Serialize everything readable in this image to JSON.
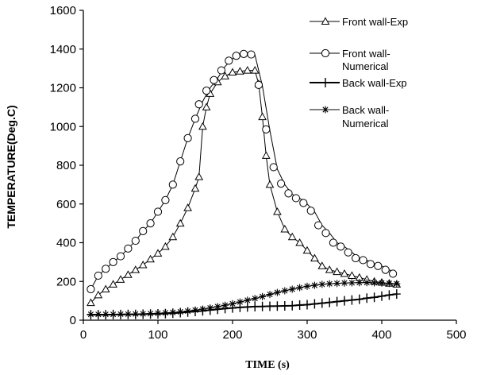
{
  "chart_data": {
    "type": "line",
    "xlabel": "TIME (s)",
    "ylabel": "TEMPERATURE(Deg.C)",
    "xlim": [
      0,
      500
    ],
    "ylim": [
      0,
      1600
    ],
    "xticks": [
      "0",
      "100",
      "200",
      "300",
      "400",
      "500"
    ],
    "yticks": [
      "0",
      "200",
      "400",
      "600",
      "800",
      "1000",
      "1200",
      "1400",
      "1600"
    ],
    "grid": false,
    "legend_position": "top-right",
    "series": [
      {
        "name": "Front wall-Exp",
        "marker": "triangle",
        "line_width": 1,
        "x": [
          10,
          20,
          30,
          40,
          50,
          60,
          70,
          80,
          90,
          100,
          110,
          120,
          130,
          140,
          150,
          155,
          160,
          165,
          170,
          180,
          190,
          200,
          210,
          220,
          230,
          235,
          240,
          245,
          250,
          260,
          270,
          280,
          290,
          300,
          310,
          320,
          330,
          340,
          350,
          360,
          370,
          380,
          390,
          400,
          410,
          420
        ],
        "y": [
          90,
          130,
          160,
          185,
          210,
          235,
          260,
          285,
          315,
          345,
          380,
          430,
          500,
          580,
          680,
          740,
          1000,
          1100,
          1170,
          1230,
          1260,
          1280,
          1285,
          1290,
          1290,
          1220,
          1050,
          850,
          700,
          560,
          470,
          430,
          400,
          360,
          320,
          280,
          260,
          250,
          240,
          230,
          220,
          210,
          200,
          195,
          190,
          185
        ]
      },
      {
        "name": "Front wall-Numerical",
        "marker": "circle",
        "line_width": 1,
        "x": [
          10,
          20,
          30,
          40,
          50,
          60,
          70,
          80,
          90,
          100,
          110,
          120,
          130,
          140,
          150,
          160,
          170,
          180,
          190,
          200,
          210,
          220,
          230,
          240,
          250,
          260,
          270,
          280,
          290,
          300,
          310,
          320,
          330,
          340,
          350,
          360,
          370,
          380,
          390,
          400,
          410,
          420
        ],
        "y": [
          160,
          230,
          265,
          300,
          330,
          370,
          410,
          460,
          500,
          560,
          620,
          700,
          820,
          940,
          1040,
          1130,
          1200,
          1250,
          1310,
          1350,
          1370,
          1375,
          1370,
          1210,
          980,
          780,
          700,
          650,
          630,
          600,
          560,
          490,
          450,
          400,
          380,
          350,
          320,
          310,
          290,
          280,
          260,
          240
        ],
        "point_x": [
          10,
          20,
          30,
          40,
          50,
          60,
          70,
          80,
          90,
          100,
          110,
          120,
          130,
          140,
          150,
          155,
          165,
          175,
          185,
          195,
          205,
          215,
          225,
          235,
          245,
          255,
          265,
          275,
          285,
          295,
          305,
          315,
          325,
          335,
          345,
          355,
          365,
          375,
          385,
          395,
          405,
          415
        ],
        "point_y": [
          160,
          230,
          265,
          300,
          330,
          370,
          410,
          460,
          500,
          560,
          620,
          700,
          820,
          940,
          1040,
          1115,
          1185,
          1240,
          1290,
          1340,
          1365,
          1375,
          1372,
          1215,
          985,
          790,
          705,
          655,
          630,
          605,
          565,
          490,
          450,
          400,
          380,
          350,
          320,
          310,
          290,
          280,
          260,
          240
        ]
      },
      {
        "name": "Back wall-Exp",
        "marker": "plus",
        "line_width": 2,
        "x": [
          10,
          20,
          30,
          40,
          50,
          60,
          70,
          80,
          90,
          100,
          110,
          120,
          130,
          140,
          150,
          160,
          170,
          180,
          190,
          200,
          210,
          220,
          230,
          240,
          250,
          260,
          270,
          280,
          290,
          300,
          310,
          320,
          330,
          340,
          350,
          360,
          370,
          380,
          390,
          400,
          410,
          420
        ],
        "y": [
          28,
          28,
          28,
          29,
          29,
          30,
          30,
          31,
          32,
          33,
          34,
          36,
          39,
          42,
          45,
          48,
          52,
          56,
          60,
          63,
          66,
          68,
          70,
          71,
          72,
          73,
          74,
          75,
          78,
          80,
          84,
          88,
          92,
          96,
          100,
          104,
          108,
          114,
          118,
          124,
          130,
          135
        ]
      },
      {
        "name": "Back wall-Numerical",
        "marker": "asterisk",
        "line_width": 1,
        "x": [
          10,
          20,
          30,
          40,
          50,
          60,
          70,
          80,
          90,
          100,
          110,
          120,
          130,
          140,
          150,
          160,
          170,
          180,
          190,
          200,
          210,
          220,
          230,
          240,
          250,
          260,
          270,
          280,
          290,
          300,
          310,
          320,
          330,
          340,
          350,
          360,
          370,
          380,
          390,
          400,
          410,
          420
        ],
        "y": [
          30,
          30,
          30,
          30,
          31,
          31,
          32,
          33,
          34,
          36,
          38,
          40,
          43,
          47,
          52,
          57,
          63,
          70,
          77,
          85,
          94,
          103,
          112,
          122,
          133,
          143,
          152,
          160,
          168,
          175,
          180,
          185,
          188,
          190,
          192,
          193,
          194,
          194,
          193,
          192,
          190,
          188
        ]
      }
    ]
  }
}
